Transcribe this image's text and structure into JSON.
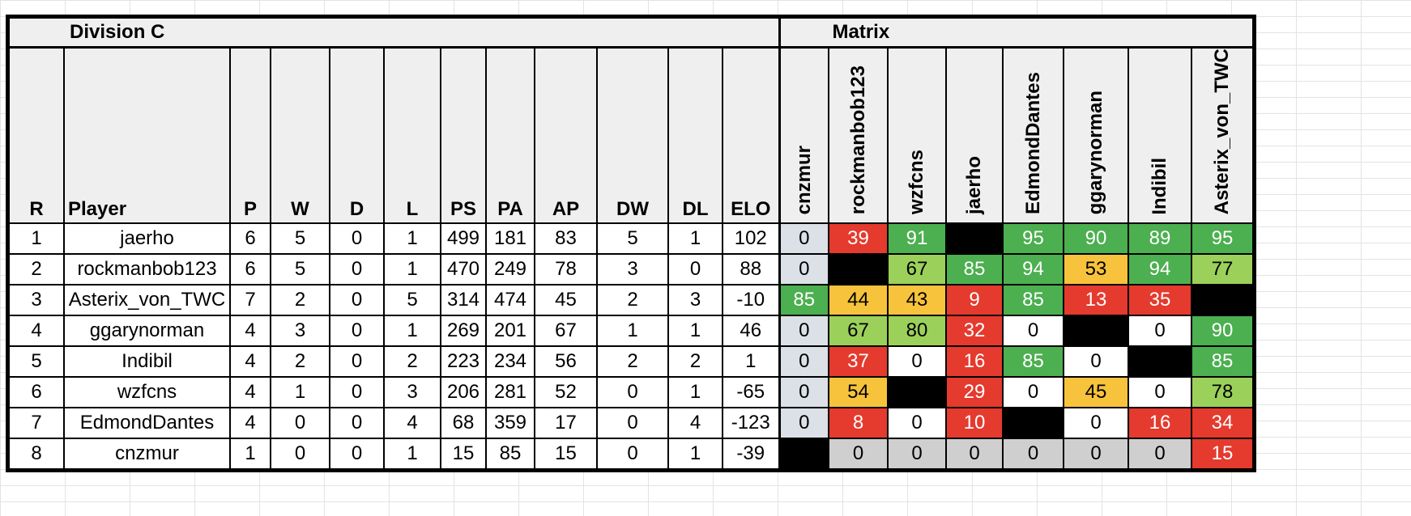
{
  "division_title": "Division C",
  "matrix_title": "Matrix",
  "columns": [
    "R",
    "Player",
    "P",
    "W",
    "D",
    "L",
    "PS",
    "PA",
    "AP",
    "DW",
    "DL",
    "ELO"
  ],
  "matrix_columns": [
    "cnzmur",
    "rockmanbob123",
    "wzfcns",
    "jaerho",
    "EdmondDantes",
    "ggarynorman",
    "Indibil",
    "Asterix_von_TWC"
  ],
  "rows": [
    {
      "cells": [
        "1",
        "jaerho",
        "6",
        "5",
        "0",
        "1",
        "499",
        "181",
        "83",
        "5",
        "1",
        "102"
      ],
      "matrix": [
        {
          "v": "0",
          "c": "cnz"
        },
        {
          "v": "39",
          "c": "red"
        },
        {
          "v": "91",
          "c": "dg"
        },
        {
          "v": "",
          "c": "blk"
        },
        {
          "v": "95",
          "c": "dg"
        },
        {
          "v": "90",
          "c": "dg"
        },
        {
          "v": "89",
          "c": "dg"
        },
        {
          "v": "95",
          "c": "dg"
        }
      ]
    },
    {
      "cells": [
        "2",
        "rockmanbob123",
        "6",
        "5",
        "0",
        "1",
        "470",
        "249",
        "78",
        "3",
        "0",
        "88"
      ],
      "matrix": [
        {
          "v": "0",
          "c": "cnz"
        },
        {
          "v": "",
          "c": "blk"
        },
        {
          "v": "67",
          "c": "lg"
        },
        {
          "v": "85",
          "c": "dg"
        },
        {
          "v": "94",
          "c": "dg"
        },
        {
          "v": "53",
          "c": "yel"
        },
        {
          "v": "94",
          "c": "dg"
        },
        {
          "v": "77",
          "c": "lg"
        }
      ]
    },
    {
      "cells": [
        "3",
        "Asterix_von_TWC",
        "7",
        "2",
        "0",
        "5",
        "314",
        "474",
        "45",
        "2",
        "3",
        "-10"
      ],
      "matrix": [
        {
          "v": "85",
          "c": "dg"
        },
        {
          "v": "44",
          "c": "yel"
        },
        {
          "v": "43",
          "c": "yel"
        },
        {
          "v": "9",
          "c": "red"
        },
        {
          "v": "85",
          "c": "dg"
        },
        {
          "v": "13",
          "c": "red"
        },
        {
          "v": "35",
          "c": "red"
        },
        {
          "v": "",
          "c": "blk"
        }
      ]
    },
    {
      "cells": [
        "4",
        "ggarynorman",
        "4",
        "3",
        "0",
        "1",
        "269",
        "201",
        "67",
        "1",
        "1",
        "46"
      ],
      "matrix": [
        {
          "v": "0",
          "c": "cnz"
        },
        {
          "v": "67",
          "c": "lg"
        },
        {
          "v": "80",
          "c": "lg"
        },
        {
          "v": "32",
          "c": "red"
        },
        {
          "v": "0",
          "c": "wht"
        },
        {
          "v": "",
          "c": "blk"
        },
        {
          "v": "0",
          "c": "wht"
        },
        {
          "v": "90",
          "c": "dg"
        }
      ]
    },
    {
      "cells": [
        "5",
        "Indibil",
        "4",
        "2",
        "0",
        "2",
        "223",
        "234",
        "56",
        "2",
        "2",
        "1"
      ],
      "matrix": [
        {
          "v": "0",
          "c": "cnz"
        },
        {
          "v": "37",
          "c": "red"
        },
        {
          "v": "0",
          "c": "wht"
        },
        {
          "v": "16",
          "c": "red"
        },
        {
          "v": "85",
          "c": "dg"
        },
        {
          "v": "0",
          "c": "wht"
        },
        {
          "v": "",
          "c": "blk"
        },
        {
          "v": "85",
          "c": "dg"
        }
      ]
    },
    {
      "cells": [
        "6",
        "wzfcns",
        "4",
        "1",
        "0",
        "3",
        "206",
        "281",
        "52",
        "0",
        "1",
        "-65"
      ],
      "matrix": [
        {
          "v": "0",
          "c": "cnz"
        },
        {
          "v": "54",
          "c": "yel"
        },
        {
          "v": "",
          "c": "blk"
        },
        {
          "v": "29",
          "c": "red"
        },
        {
          "v": "0",
          "c": "wht"
        },
        {
          "v": "45",
          "c": "yel"
        },
        {
          "v": "0",
          "c": "wht"
        },
        {
          "v": "78",
          "c": "lg"
        }
      ]
    },
    {
      "cells": [
        "7",
        "EdmondDantes",
        "4",
        "0",
        "0",
        "4",
        "68",
        "359",
        "17",
        "0",
        "4",
        "-123"
      ],
      "matrix": [
        {
          "v": "0",
          "c": "cnz"
        },
        {
          "v": "8",
          "c": "red"
        },
        {
          "v": "0",
          "c": "wht"
        },
        {
          "v": "10",
          "c": "red"
        },
        {
          "v": "",
          "c": "blk"
        },
        {
          "v": "0",
          "c": "wht"
        },
        {
          "v": "16",
          "c": "red"
        },
        {
          "v": "34",
          "c": "red"
        }
      ]
    },
    {
      "cells": [
        "8",
        "cnzmur",
        "1",
        "0",
        "0",
        "1",
        "15",
        "85",
        "15",
        "0",
        "1",
        "-39"
      ],
      "matrix": [
        {
          "v": "",
          "c": "blk"
        },
        {
          "v": "0",
          "c": "gry"
        },
        {
          "v": "0",
          "c": "gry"
        },
        {
          "v": "0",
          "c": "gry"
        },
        {
          "v": "0",
          "c": "gry"
        },
        {
          "v": "0",
          "c": "gry"
        },
        {
          "v": "0",
          "c": "gry"
        },
        {
          "v": "15",
          "c": "red"
        }
      ]
    }
  ],
  "colors": {
    "red": "#e53a2e",
    "dark_green": "#4caf50",
    "light_green": "#9bd05a",
    "yellow": "#f7c33c",
    "black": "#000000",
    "grey": "#cfcfcf",
    "cnzmur_column": "#dce1e7",
    "header_fill": "#efefef"
  }
}
